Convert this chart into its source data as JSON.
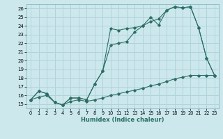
{
  "xlabel": "Humidex (Indice chaleur)",
  "xlim": [
    -0.5,
    23.5
  ],
  "ylim": [
    14.5,
    26.5
  ],
  "xticks": [
    0,
    1,
    2,
    3,
    4,
    5,
    6,
    7,
    8,
    9,
    10,
    11,
    12,
    13,
    14,
    15,
    16,
    17,
    18,
    19,
    20,
    21,
    22,
    23
  ],
  "yticks": [
    15,
    16,
    17,
    18,
    19,
    20,
    21,
    22,
    23,
    24,
    25,
    26
  ],
  "bg_color": "#cce8ed",
  "grid_color": "#b0d4da",
  "line_color": "#2d6e63",
  "line1_x": [
    0,
    1,
    2,
    3,
    4,
    5,
    6,
    7,
    8,
    9,
    10,
    11,
    12,
    13,
    14,
    15,
    16,
    17,
    18,
    19,
    20,
    21,
    22,
    23
  ],
  "line1_y": [
    15.5,
    16.5,
    16.2,
    15.2,
    14.9,
    15.7,
    15.7,
    15.5,
    17.3,
    18.8,
    23.7,
    23.5,
    23.7,
    23.8,
    24.0,
    25.0,
    24.1,
    25.8,
    26.2,
    26.1,
    26.2,
    23.8,
    20.3,
    18.3
  ],
  "line2_x": [
    0,
    1,
    2,
    3,
    4,
    5,
    6,
    7,
    8,
    9,
    10,
    11,
    12,
    13,
    14,
    15,
    16,
    17,
    18,
    19,
    20,
    21,
    22,
    23
  ],
  "line2_y": [
    15.5,
    16.5,
    16.2,
    15.2,
    14.9,
    15.7,
    15.7,
    15.5,
    17.3,
    18.8,
    21.8,
    22.0,
    22.2,
    23.3,
    24.0,
    24.5,
    24.8,
    25.8,
    26.2,
    26.1,
    26.2,
    23.8,
    20.3,
    18.3
  ],
  "line3_x": [
    0,
    1,
    2,
    3,
    4,
    5,
    6,
    7,
    8,
    9,
    10,
    11,
    12,
    13,
    14,
    15,
    16,
    17,
    18,
    19,
    20,
    21,
    22,
    23
  ],
  "line3_y": [
    15.5,
    15.8,
    16.0,
    15.2,
    14.9,
    15.3,
    15.5,
    15.3,
    15.5,
    15.7,
    16.0,
    16.2,
    16.4,
    16.6,
    16.8,
    17.1,
    17.3,
    17.6,
    17.9,
    18.1,
    18.3,
    18.3,
    18.3,
    18.3
  ]
}
